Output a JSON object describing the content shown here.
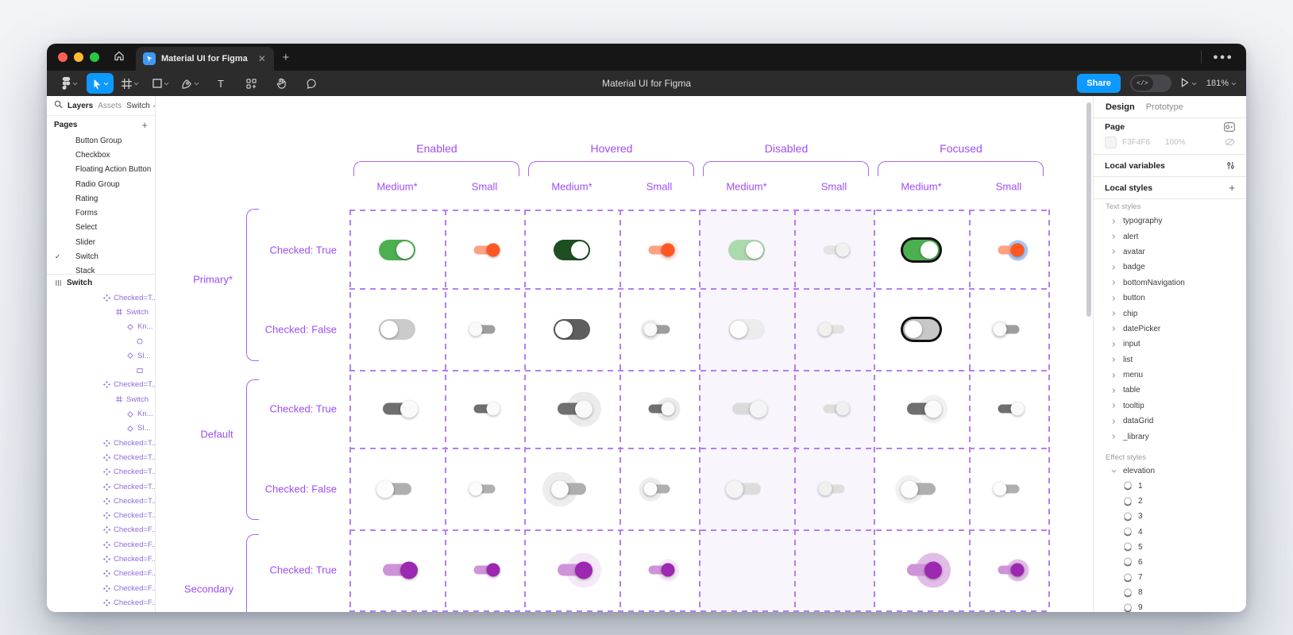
{
  "window": {
    "controls": [
      "close",
      "minimize",
      "maximize"
    ],
    "tab": {
      "title": "Material UI for Figma"
    },
    "toolbar": {
      "title": "Material UI for Figma",
      "share_label": "Share",
      "zoom_level": "181%",
      "accent_color": "#0D99FF",
      "tools": [
        {
          "name": "main-menu-button",
          "icon": "figmaLogo",
          "chevron": true
        },
        {
          "name": "move-tool",
          "icon": "cursor",
          "chevron": true,
          "active": true
        },
        {
          "name": "frame-tool",
          "icon": "frame",
          "chevron": true
        },
        {
          "name": "shape-tool",
          "icon": "square",
          "chevron": true
        },
        {
          "name": "pen-tool",
          "icon": "pen",
          "chevron": true
        },
        {
          "name": "text-tool",
          "icon": "text"
        },
        {
          "name": "actions-tool",
          "icon": "actions"
        },
        {
          "name": "hand-tool",
          "icon": "hand"
        },
        {
          "name": "comment-tool",
          "icon": "comment"
        }
      ]
    }
  },
  "left_sidebar": {
    "tabs": {
      "layers": "Layers",
      "assets": "Assets"
    },
    "page_selector": "Switch",
    "pages_header": "Pages",
    "pages": [
      {
        "label": "Button Group"
      },
      {
        "label": "Checkbox"
      },
      {
        "label": "Floating Action Button"
      },
      {
        "label": "Radio Group"
      },
      {
        "label": "Rating"
      },
      {
        "label": "Forms"
      },
      {
        "label": "Select"
      },
      {
        "label": "Slider"
      },
      {
        "label": "Switch",
        "current": true
      },
      {
        "label": "Stack"
      }
    ],
    "root_layer": "Switch",
    "layers": [
      {
        "icon": "component",
        "label": "Checked=T...",
        "depth": 1
      },
      {
        "icon": "frame",
        "label": "Switch",
        "depth": 2
      },
      {
        "icon": "instance",
        "label": "Kn...",
        "depth": 3
      },
      {
        "icon": "ellipse",
        "label": "",
        "depth": 4
      },
      {
        "icon": "instance",
        "label": "Sl...",
        "depth": 3
      },
      {
        "icon": "rectangle",
        "label": "",
        "depth": 4
      },
      {
        "icon": "component",
        "label": "Checked=T...",
        "depth": 1
      },
      {
        "icon": "frame",
        "label": "Switch",
        "depth": 2
      },
      {
        "icon": "instance",
        "label": "Kn...",
        "depth": 3
      },
      {
        "icon": "instance",
        "label": "Sl...",
        "depth": 3
      },
      {
        "icon": "component",
        "label": "Checked=T...",
        "depth": 1
      },
      {
        "icon": "component",
        "label": "Checked=T...",
        "depth": 1
      },
      {
        "icon": "component",
        "label": "Checked=T...",
        "depth": 1
      },
      {
        "icon": "component",
        "label": "Checked=T...",
        "depth": 1
      },
      {
        "icon": "component",
        "label": "Checked=T...",
        "depth": 1
      },
      {
        "icon": "component",
        "label": "Checked=T...",
        "depth": 1
      },
      {
        "icon": "component",
        "label": "Checked=F...",
        "depth": 1
      },
      {
        "icon": "component",
        "label": "Checked=F...",
        "depth": 1
      },
      {
        "icon": "component",
        "label": "Checked=F...",
        "depth": 1
      },
      {
        "icon": "component",
        "label": "Checked=F...",
        "depth": 1
      },
      {
        "icon": "component",
        "label": "Checked=F...",
        "depth": 1
      },
      {
        "icon": "component",
        "label": "Checked=F...",
        "depth": 1
      },
      {
        "icon": "frame",
        "label": "Switch",
        "depth": 2
      }
    ]
  },
  "canvas": {
    "purple_text": "#9E4DF5",
    "purple_line": "#B47FF0",
    "disabled_bg": "#F8F5FC",
    "column_groups": [
      {
        "label": "Enabled",
        "subcolumns": [
          "Medium*",
          "Small"
        ]
      },
      {
        "label": "Hovered",
        "subcolumns": [
          "Medium*",
          "Small"
        ]
      },
      {
        "label": "Disabled",
        "subcolumns": [
          "Medium*",
          "Small"
        ]
      },
      {
        "label": "Focused",
        "subcolumns": [
          "Medium*",
          "Small"
        ]
      }
    ],
    "row_groups": [
      {
        "label": "Primary*",
        "rows": [
          "Checked: True",
          "Checked: False"
        ]
      },
      {
        "label": "Default",
        "rows": [
          "Checked: True",
          "Checked: False"
        ]
      },
      {
        "label": "Secondary",
        "rows": [
          "Checked: True"
        ]
      }
    ],
    "switch_rows": [
      [
        {
          "kind": "ios",
          "size": "md",
          "on": true,
          "track": "#4CAF50",
          "thumb": "#FFFFFF"
        },
        {
          "kind": "mui",
          "size": "sm",
          "on": true,
          "track": "#FFA183",
          "thumb": "#FF5722"
        },
        {
          "kind": "ios",
          "size": "md",
          "on": true,
          "track": "#1E4F23",
          "thumb": "#FFFFFF"
        },
        {
          "kind": "mui",
          "size": "sm",
          "on": true,
          "track": "#FFA183",
          "thumb": "#FF5722",
          "halo": "rgba(255,87,34,0.10)",
          "halo_r": 13
        },
        {
          "kind": "ios",
          "size": "md",
          "on": true,
          "track": "#ACD9AE",
          "thumb": "#FDFDFD"
        },
        {
          "kind": "mui",
          "size": "sm",
          "on": true,
          "track": "#E3E3E3",
          "thumb": "#F1F1F1"
        },
        {
          "kind": "ios",
          "size": "md",
          "on": true,
          "track": "#4CAF50",
          "thumb": "#FFFFFF",
          "ring": "#111111"
        },
        {
          "kind": "mui",
          "size": "sm",
          "on": true,
          "track": "#FFA183",
          "thumb": "#FF5722",
          "halo": "rgba(100,158,240,0.55)",
          "halo_r": 13
        }
      ],
      [
        {
          "kind": "ios",
          "size": "md",
          "on": false,
          "track": "#CBCBCB",
          "thumb": "#FFFFFF"
        },
        {
          "kind": "mui",
          "size": "sm",
          "on": false,
          "track": "#9E9E9E",
          "thumb": "#FAFAFA"
        },
        {
          "kind": "ios",
          "size": "md",
          "on": false,
          "track": "#5E5E5E",
          "thumb": "#FFFFFF"
        },
        {
          "kind": "mui",
          "size": "sm",
          "on": false,
          "track": "#9E9E9E",
          "thumb": "#FAFAFA",
          "halo": "rgba(0,0,0,0.06)",
          "halo_r": 13
        },
        {
          "kind": "ios",
          "size": "md",
          "on": false,
          "track": "#ECECEC",
          "thumb": "#FDFDFD"
        },
        {
          "kind": "mui",
          "size": "sm",
          "on": false,
          "track": "#E3E3E3",
          "thumb": "#F1F1F1"
        },
        {
          "kind": "ios",
          "size": "md",
          "on": false,
          "track": "#C7C7C7",
          "thumb": "#FFFFFF",
          "ring": "#111111"
        },
        {
          "kind": "mui",
          "size": "sm",
          "on": false,
          "track": "#9E9E9E",
          "thumb": "#FAFAFA",
          "halo": "rgba(0,0,0,0.04)",
          "halo_r": 12
        }
      ],
      [
        {
          "kind": "mui",
          "size": "md",
          "on": true,
          "track": "#6F6F6F",
          "thumb": "#FAFAFA"
        },
        {
          "kind": "mui",
          "size": "sm",
          "on": true,
          "track": "#6F6F6F",
          "thumb": "#FAFAFA"
        },
        {
          "kind": "mui",
          "size": "md",
          "on": true,
          "track": "#6F6F6F",
          "thumb": "#FAFAFA",
          "halo": "rgba(0,0,0,0.08)",
          "halo_r": 22
        },
        {
          "kind": "mui",
          "size": "sm",
          "on": true,
          "track": "#6F6F6F",
          "thumb": "#FAFAFA",
          "halo": "rgba(0,0,0,0.08)",
          "halo_r": 15
        },
        {
          "kind": "mui",
          "size": "md",
          "on": true,
          "track": "#DBDBDB",
          "thumb": "#F4F4F4"
        },
        {
          "kind": "mui",
          "size": "sm",
          "on": true,
          "track": "#DDDDDD",
          "thumb": "#F0F0F0"
        },
        {
          "kind": "mui",
          "size": "md",
          "on": true,
          "track": "#6F6F6F",
          "thumb": "#FAFAFA",
          "halo": "rgba(0,0,0,0.05)",
          "halo_r": 18
        },
        {
          "kind": "mui",
          "size": "sm",
          "on": true,
          "track": "#6F6F6F",
          "thumb": "#FAFAFA"
        }
      ],
      [
        {
          "kind": "mui",
          "size": "md",
          "on": false,
          "track": "#AFAFAF",
          "thumb": "#FCFCFC"
        },
        {
          "kind": "mui",
          "size": "sm",
          "on": false,
          "track": "#AFAFAF",
          "thumb": "#FCFCFC"
        },
        {
          "kind": "mui",
          "size": "md",
          "on": false,
          "track": "#AFAFAF",
          "thumb": "#FCFCFC",
          "halo": "rgba(0,0,0,0.07)",
          "halo_r": 22
        },
        {
          "kind": "mui",
          "size": "sm",
          "on": false,
          "track": "#AFAFAF",
          "thumb": "#FCFCFC",
          "halo": "rgba(0,0,0,0.07)",
          "halo_r": 15
        },
        {
          "kind": "mui",
          "size": "md",
          "on": false,
          "track": "#DDDDDD",
          "thumb": "#F4F4F4"
        },
        {
          "kind": "mui",
          "size": "sm",
          "on": false,
          "track": "#DEDEDE",
          "thumb": "#F0F0F0"
        },
        {
          "kind": "mui",
          "size": "md",
          "on": false,
          "track": "#AFAFAF",
          "thumb": "#FCFCFC",
          "halo": "rgba(0,0,0,0.05)",
          "halo_r": 18
        },
        {
          "kind": "mui",
          "size": "sm",
          "on": false,
          "track": "#AFAFAF",
          "thumb": "#FCFCFC"
        }
      ],
      [
        {
          "kind": "mui",
          "size": "md",
          "on": true,
          "track": "#CE93D8",
          "thumb": "#9C27B0"
        },
        {
          "kind": "mui",
          "size": "sm",
          "on": true,
          "track": "#CE93D8",
          "thumb": "#9C27B0"
        },
        {
          "kind": "mui",
          "size": "md",
          "on": true,
          "track": "#CE93D8",
          "thumb": "#9C27B0",
          "halo": "rgba(156,39,176,0.10)",
          "halo_r": 22
        },
        {
          "kind": "mui",
          "size": "sm",
          "on": true,
          "track": "#CE93D8",
          "thumb": "#9C27B0",
          "halo": "rgba(156,39,176,0.10)",
          "halo_r": 14
        },
        {
          "kind": "none"
        },
        {
          "kind": "none"
        },
        {
          "kind": "mui",
          "size": "md",
          "on": true,
          "track": "#CE93D8",
          "thumb": "#9C27B0",
          "halo": "rgba(156,39,176,0.30)",
          "halo_r": 22
        },
        {
          "kind": "mui",
          "size": "sm",
          "on": true,
          "track": "#CE93D8",
          "thumb": "#9C27B0",
          "halo": "rgba(156,39,176,0.30)",
          "halo_r": 14
        }
      ]
    ]
  },
  "right_sidebar": {
    "tabs": {
      "design": "Design",
      "prototype": "Prototype"
    },
    "page_section": {
      "title": "Page",
      "fill_hex": "F3F4F6",
      "fill_opacity": "100%"
    },
    "local_variables_label": "Local variables",
    "local_styles_label": "Local styles",
    "text_styles_label": "Text styles",
    "text_styles": [
      "typography",
      "alert",
      "avatar",
      "badge",
      "bottomNavigation",
      "button",
      "chip",
      "datePicker",
      "input",
      "list",
      "menu",
      "table",
      "tooltip",
      "dataGrid",
      "_library"
    ],
    "effect_styles_label": "Effect styles",
    "effect_group": "elevation",
    "elevation_items": [
      "1",
      "2",
      "3",
      "4",
      "5",
      "6",
      "7",
      "8",
      "9"
    ]
  }
}
